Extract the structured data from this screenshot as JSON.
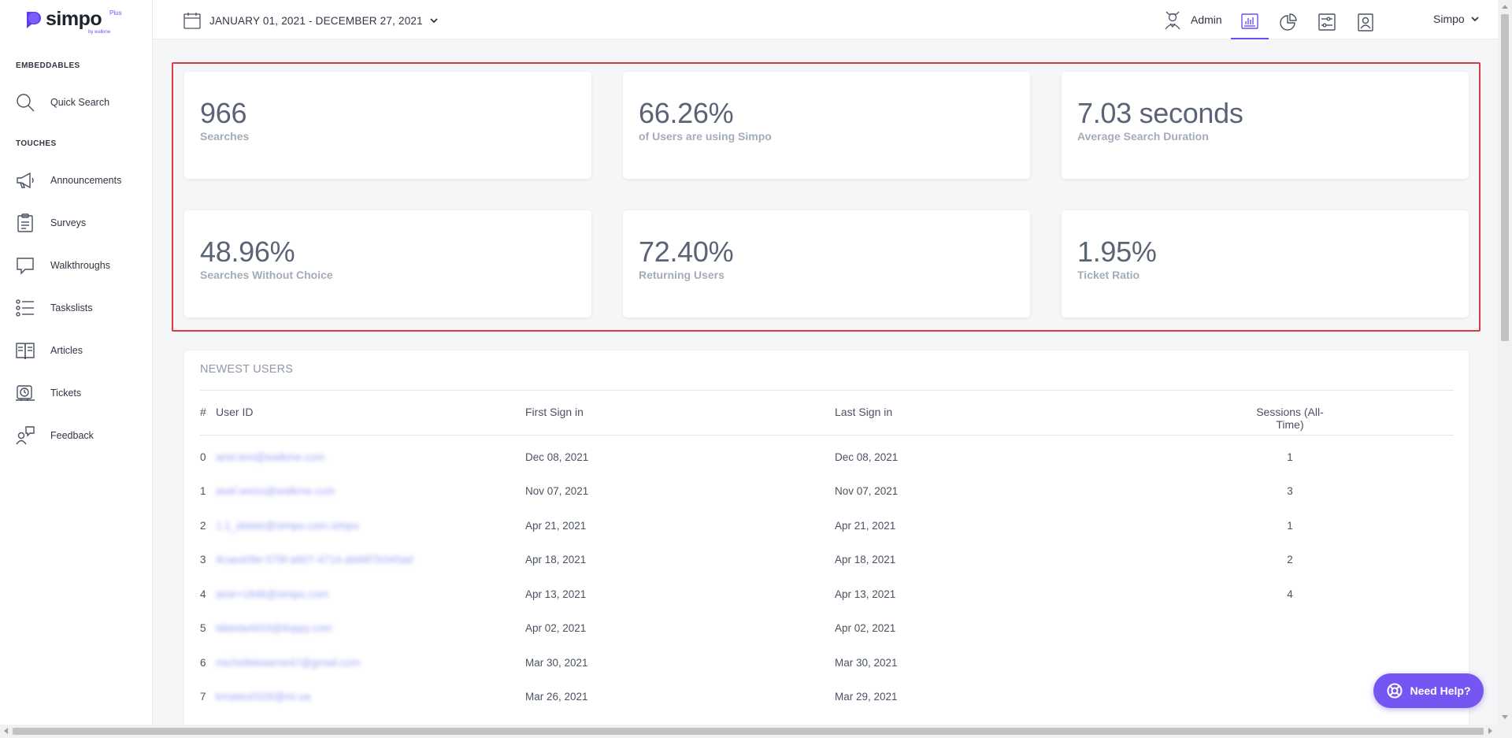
{
  "brand": {
    "name": "simpo",
    "plus": "Plus",
    "by": "by walkme"
  },
  "sidebar": {
    "sections": [
      {
        "title": "EMBEDDABLES",
        "items": [
          {
            "label": "Quick Search",
            "icon": "search-icon"
          }
        ]
      },
      {
        "title": "TOUCHES",
        "items": [
          {
            "label": "Announcements",
            "icon": "megaphone-icon"
          },
          {
            "label": "Surveys",
            "icon": "clipboard-icon"
          },
          {
            "label": "Walkthroughs",
            "icon": "speech-bubble-icon"
          },
          {
            "label": "Taskslists",
            "icon": "checklist-icon"
          },
          {
            "label": "Articles",
            "icon": "book-icon"
          },
          {
            "label": "Tickets",
            "icon": "ticket-clock-icon"
          },
          {
            "label": "Feedback",
            "icon": "feedback-person-icon"
          }
        ]
      }
    ]
  },
  "header": {
    "date_range": "JANUARY 01, 2021 - DECEMBER 27, 2021",
    "admin_label": "Admin",
    "user_label": "Simpo",
    "buttons": [
      "analytics-icon",
      "pie-chart-icon",
      "sliders-icon",
      "user-profile-icon"
    ],
    "accent": "#6f4cf5"
  },
  "stats": [
    {
      "value": "966",
      "caption": "Searches"
    },
    {
      "value": "66.26%",
      "caption": "of Users are using Simpo"
    },
    {
      "value": "7.03 seconds",
      "caption": "Average Search Duration"
    },
    {
      "value": "48.96%",
      "caption": "Searches Without Choice"
    },
    {
      "value": "72.40%",
      "caption": "Returning Users"
    },
    {
      "value": "1.95%",
      "caption": "Ticket Ratio"
    }
  ],
  "newest_users": {
    "title": "NEWEST USERS",
    "columns": {
      "index": "#",
      "user_id": "User ID",
      "first": "First Sign in",
      "last": "Last Sign in",
      "sessions": "Sessions (All-Time)"
    },
    "rows": [
      {
        "index": "0",
        "user_id": "amir.levi@walkme.com",
        "first": "Dec 08, 2021",
        "last": "Dec 08, 2021",
        "sessions": "1"
      },
      {
        "index": "1",
        "user_id": "asaf.weiss@walkme.com",
        "first": "Nov 07, 2021",
        "last": "Nov 07, 2021",
        "sessions": "3"
      },
      {
        "index": "2",
        "user_id": "1.1_delete@simpo.com.simpo",
        "first": "Apr 21, 2021",
        "last": "Apr 21, 2021",
        "sessions": "1"
      },
      {
        "index": "3",
        "user_id": "4caea09e-576f-a607-4714-ab66f7b345ad",
        "first": "Apr 18, 2021",
        "last": "Apr 18, 2021",
        "sessions": "2"
      },
      {
        "index": "4",
        "user_id": "amir+1846@simpo.com",
        "first": "Apr 13, 2021",
        "last": "Apr 13, 2021",
        "sessions": "4"
      },
      {
        "index": "5",
        "user_id": "labeda4433@iloppy.com",
        "first": "Apr 02, 2021",
        "last": "Apr 02, 2021",
        "sessions": ""
      },
      {
        "index": "6",
        "user_id": "michellekwarne47@gmail.com",
        "first": "Mar 30, 2021",
        "last": "Mar 30, 2021",
        "sessions": ""
      },
      {
        "index": "7",
        "user_id": "kmateo0326@ini.ua",
        "first": "Mar 26, 2021",
        "last": "Mar 29, 2021",
        "sessions": ""
      }
    ]
  },
  "help_button": "Need Help?"
}
